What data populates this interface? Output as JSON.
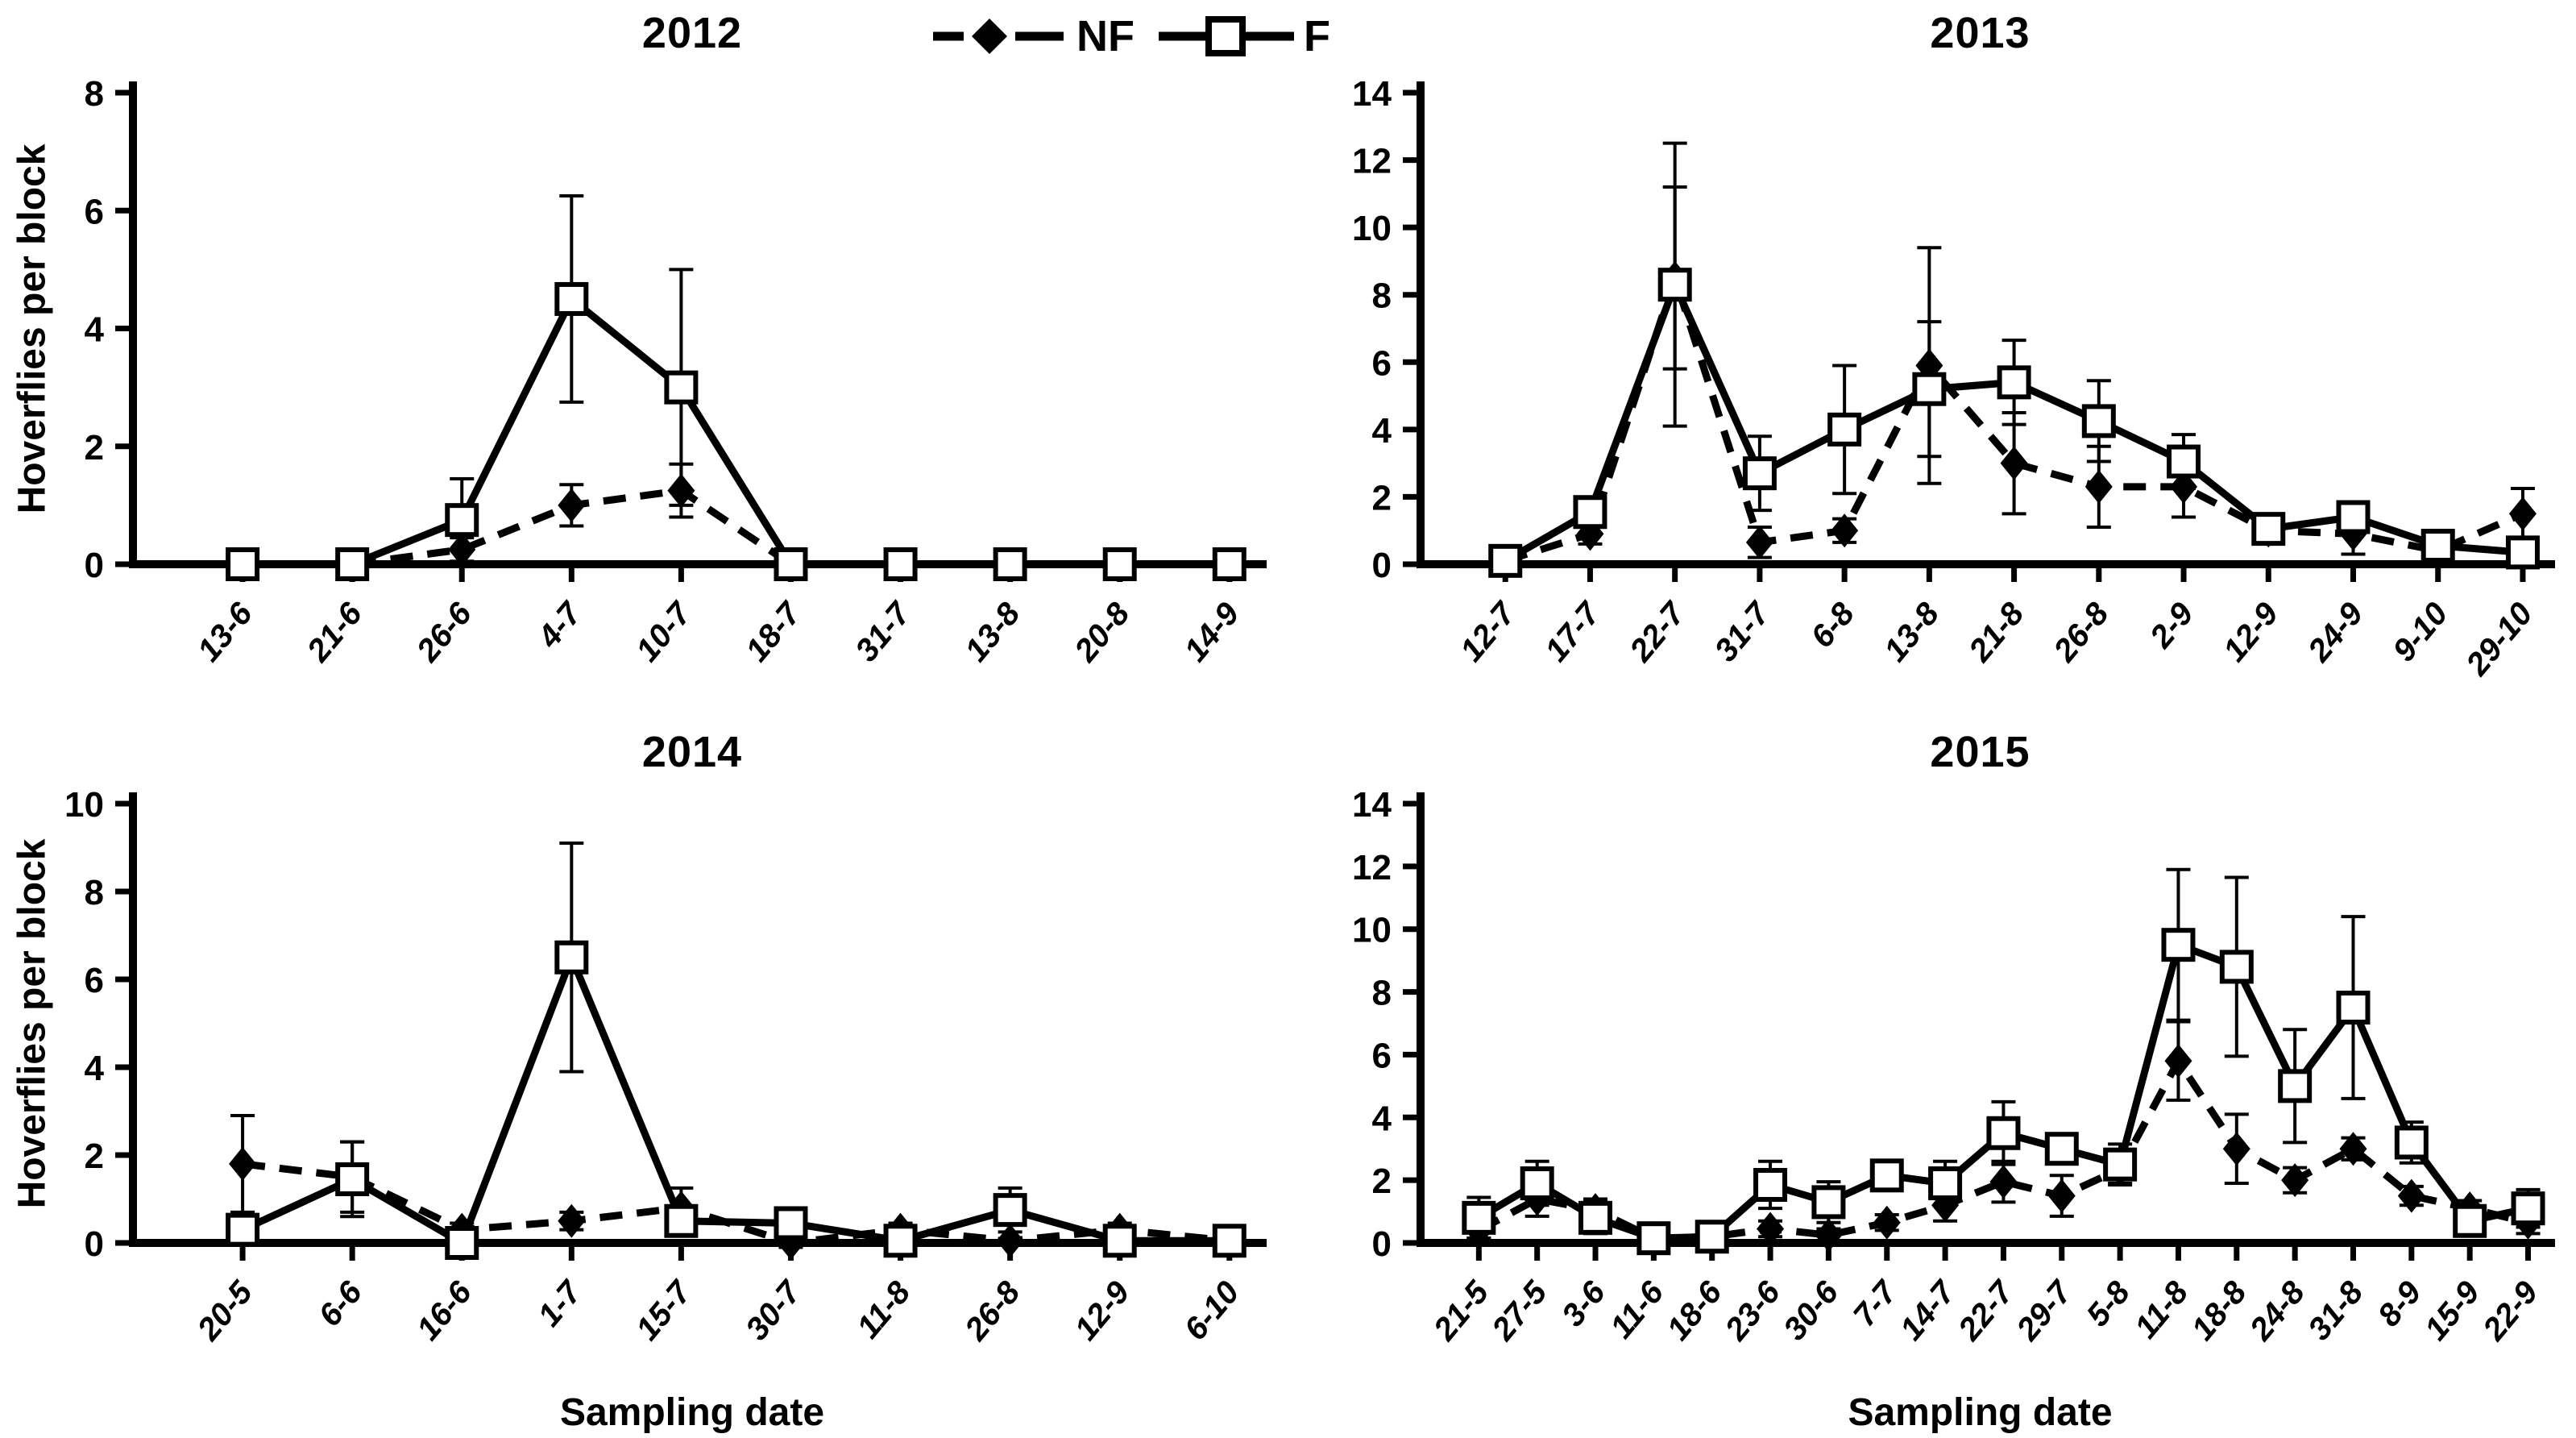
{
  "figure": {
    "ylabel": "Hoverflies per block",
    "xlabel": "Sampling date"
  },
  "legend": {
    "items": [
      {
        "label": "NF",
        "marker": "filled-diamond",
        "linestyle": "dashed"
      },
      {
        "label": "F",
        "marker": "open-square",
        "linestyle": "solid"
      }
    ]
  },
  "colors": {
    "series": "#000000",
    "marker_fill": "#ffffff",
    "background": "#ffffff"
  },
  "chart_data": [
    {
      "type": "line",
      "title": "2012",
      "ylim": [
        0,
        8
      ],
      "ytick_step": 2,
      "grid": false,
      "categories": [
        "13-6",
        "21-6",
        "26-6",
        "4-7",
        "10-7",
        "18-7",
        "31-7",
        "13-8",
        "20-8",
        "14-9"
      ],
      "series": [
        {
          "name": "NF",
          "marker": "filled-diamond",
          "linestyle": "dashed",
          "values": [
            0,
            0,
            0.25,
            1.0,
            1.25,
            0,
            0,
            0,
            0,
            0
          ],
          "errors": [
            0,
            0,
            0.2,
            0.35,
            0.45,
            0,
            0,
            0,
            0,
            0
          ]
        },
        {
          "name": "F",
          "marker": "open-square",
          "linestyle": "solid",
          "values": [
            0,
            0,
            0.75,
            4.5,
            3.0,
            0,
            0,
            0,
            0,
            0
          ],
          "errors": [
            0.1,
            0.1,
            0.7,
            1.75,
            2.0,
            0.1,
            0.1,
            0.1,
            0.1,
            0.1
          ]
        }
      ]
    },
    {
      "type": "line",
      "title": "2013",
      "ylim": [
        0,
        14
      ],
      "ytick_step": 2,
      "grid": false,
      "categories": [
        "12-7",
        "17-7",
        "22-7",
        "31-7",
        "6-8",
        "13-8",
        "21-8",
        "26-8",
        "2-9",
        "12-9",
        "24-9",
        "9-10",
        "29-10"
      ],
      "series": [
        {
          "name": "NF",
          "marker": "filled-diamond",
          "linestyle": "dashed",
          "values": [
            0.1,
            0.9,
            8.5,
            0.65,
            1.0,
            5.9,
            3.0,
            2.3,
            2.3,
            1.0,
            0.9,
            0.4,
            1.5
          ],
          "errors": [
            0.1,
            0.3,
            2.7,
            0.45,
            0.35,
            3.5,
            1.5,
            1.2,
            0.9,
            0.2,
            0.6,
            0.3,
            0.75
          ]
        },
        {
          "name": "F",
          "marker": "open-square",
          "linestyle": "solid",
          "values": [
            0.1,
            1.55,
            8.3,
            2.7,
            4.0,
            5.2,
            5.4,
            4.25,
            3.05,
            1.05,
            1.4,
            0.55,
            0.35
          ],
          "errors": [
            0.15,
            0.35,
            4.2,
            1.1,
            1.9,
            2.0,
            1.25,
            1.2,
            0.8,
            0.3,
            0.35,
            0.3,
            0.2
          ]
        }
      ]
    },
    {
      "type": "line",
      "title": "2014",
      "ylim": [
        0,
        10
      ],
      "ytick_step": 2,
      "grid": false,
      "categories": [
        "20-5",
        "6-6",
        "16-6",
        "1-7",
        "15-7",
        "30-7",
        "11-8",
        "26-8",
        "12-9",
        "6-10"
      ],
      "series": [
        {
          "name": "NF",
          "marker": "filled-diamond",
          "linestyle": "dashed",
          "values": [
            1.8,
            1.5,
            0.3,
            0.5,
            0.8,
            0,
            0.3,
            0.05,
            0.3,
            0.05
          ],
          "errors": [
            1.1,
            0.8,
            0.15,
            0.2,
            0.45,
            0.1,
            0.15,
            0.05,
            0.15,
            0.05
          ]
        },
        {
          "name": "F",
          "marker": "open-square",
          "linestyle": "solid",
          "values": [
            0.3,
            1.45,
            0,
            6.5,
            0.5,
            0.45,
            0.05,
            0.75,
            0.05,
            0.05
          ],
          "errors": [
            0.2,
            0.85,
            0.1,
            2.6,
            0.3,
            0.2,
            0.1,
            0.5,
            0.1,
            0.05
          ]
        }
      ]
    },
    {
      "type": "line",
      "title": "2015",
      "ylim": [
        0,
        14
      ],
      "ytick_step": 2,
      "grid": false,
      "categories": [
        "21-5",
        "27-5",
        "3-6",
        "11-6",
        "18-6",
        "23-6",
        "30-6",
        "7-7",
        "14-7",
        "22-7",
        "29-7",
        "5-8",
        "11-8",
        "18-8",
        "24-8",
        "31-8",
        "8-9",
        "15-9",
        "22-9"
      ],
      "series": [
        {
          "name": "NF",
          "marker": "filled-diamond",
          "linestyle": "dashed",
          "values": [
            0.4,
            1.4,
            1.05,
            0.15,
            0.2,
            0.45,
            0.25,
            0.65,
            1.2,
            1.95,
            1.5,
            2.35,
            5.8,
            3.0,
            2.0,
            3.0,
            1.5,
            1.1,
            0.65
          ],
          "errors": [
            0.25,
            0.55,
            0.35,
            0.1,
            0.1,
            0.25,
            0.2,
            0.25,
            0.5,
            0.65,
            0.65,
            0.45,
            1.25,
            1.1,
            0.4,
            0.35,
            0.3,
            0.25,
            0.35
          ]
        },
        {
          "name": "F",
          "marker": "open-square",
          "linestyle": "solid",
          "values": [
            0.8,
            1.9,
            0.8,
            0.15,
            0.2,
            1.85,
            1.3,
            2.15,
            1.9,
            3.5,
            3.0,
            2.5,
            9.5,
            8.8,
            5.0,
            7.5,
            3.2,
            0.7,
            1.1
          ],
          "errors": [
            0.65,
            0.7,
            0.5,
            0.15,
            0.15,
            0.75,
            0.65,
            0.45,
            0.7,
            1.0,
            0.45,
            0.65,
            2.4,
            2.85,
            1.8,
            2.9,
            0.65,
            0.4,
            0.6
          ]
        }
      ]
    }
  ]
}
